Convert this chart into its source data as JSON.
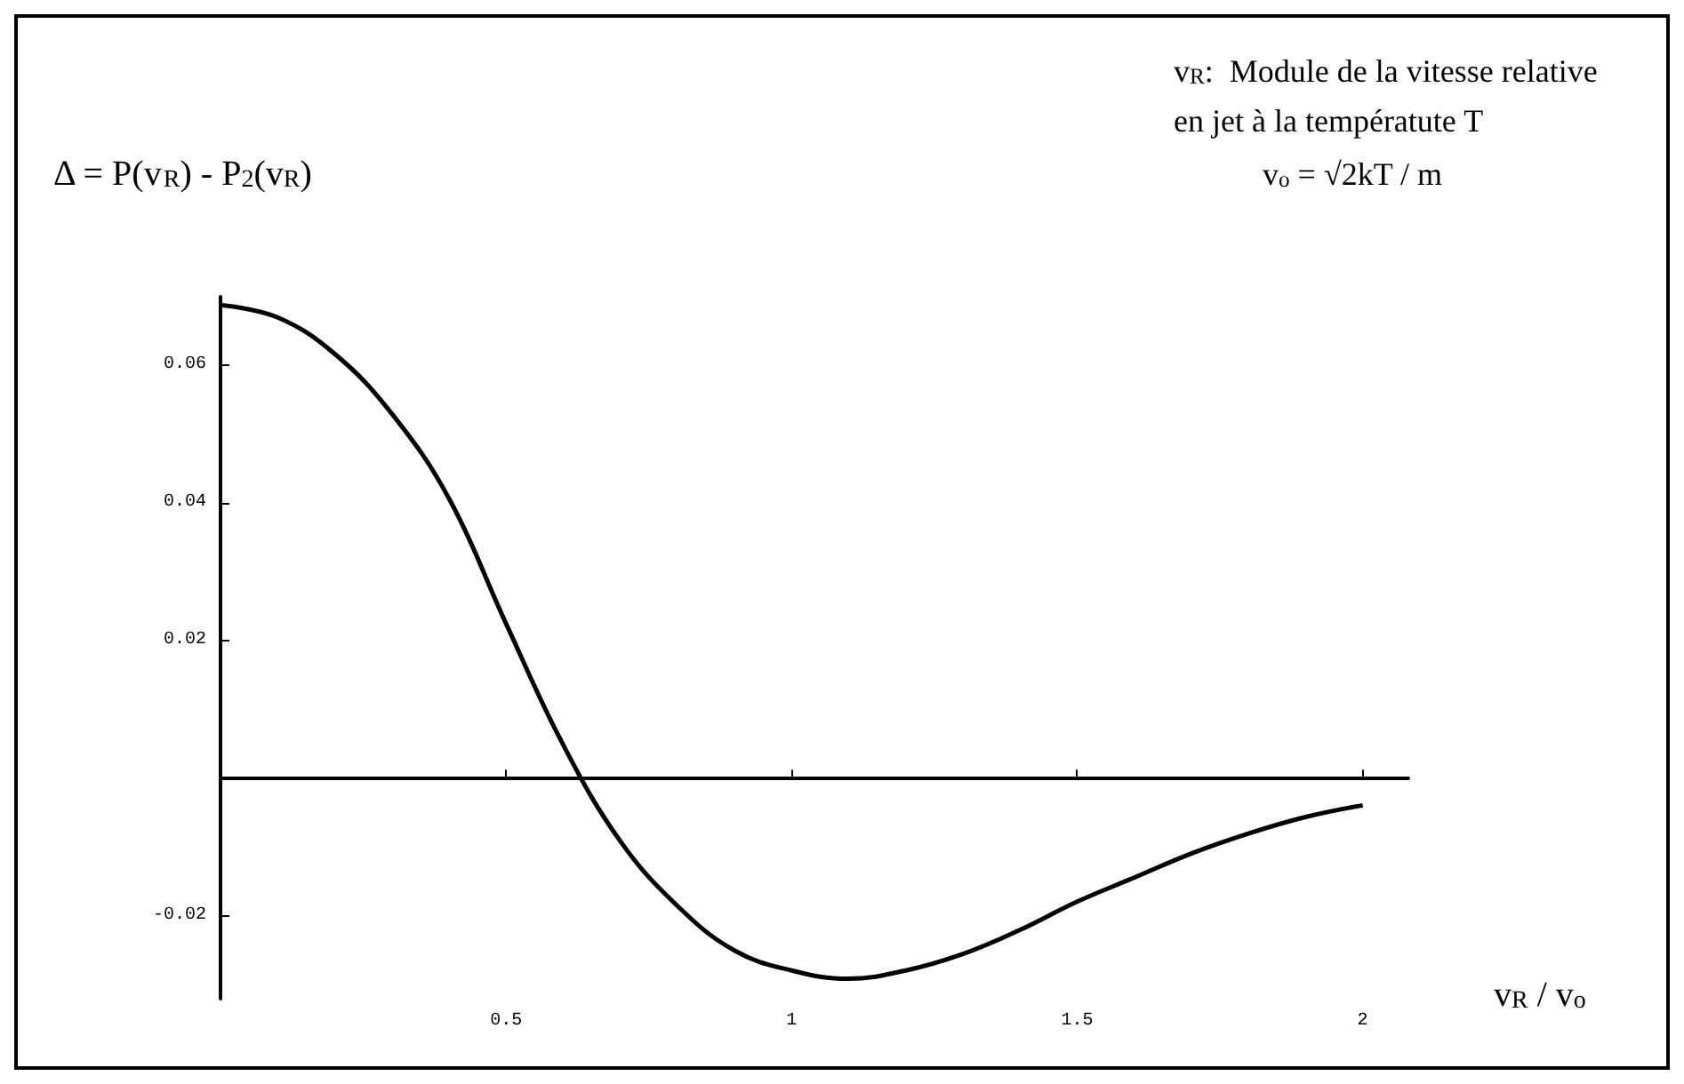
{
  "chart_data": {
    "type": "line",
    "ylabel": "Δ = P(v$_{R}$) - P$_{2}$(v$_{R}$)",
    "xlabel": "v$_{R}$ / v$_{o}$",
    "annotations": [
      "v$_{R}$:  Module de la vitesse relative",
      "en jet à la températute T",
      "v$_{o}$ = √2kT / m"
    ],
    "x": [
      0,
      0.1,
      0.2,
      0.3,
      0.4,
      0.5,
      0.6,
      0.7,
      0.8,
      0.9,
      1.0,
      1.1,
      1.2,
      1.3,
      1.4,
      1.5,
      1.6,
      1.7,
      1.8,
      1.9,
      2.0
    ],
    "series": [
      {
        "color": "#000000",
        "values": [
          0.0688,
          0.067,
          0.0617,
          0.053,
          0.0407,
          0.0225,
          0.0049,
          -0.0091,
          -0.0185,
          -0.025,
          -0.0279,
          -0.0291,
          -0.0279,
          -0.0255,
          -0.022,
          -0.0179,
          -0.0144,
          -0.0109,
          -0.008,
          -0.0056,
          -0.0039
        ]
      }
    ],
    "xlim": [
      0,
      2.08
    ],
    "ylim": [
      -0.032,
      0.07
    ],
    "xticks": [
      0.5,
      1,
      1.5,
      2
    ],
    "yticks": [
      -0.02,
      0.02,
      0.04,
      0.06
    ],
    "marker": "none",
    "line_style": "solid"
  }
}
